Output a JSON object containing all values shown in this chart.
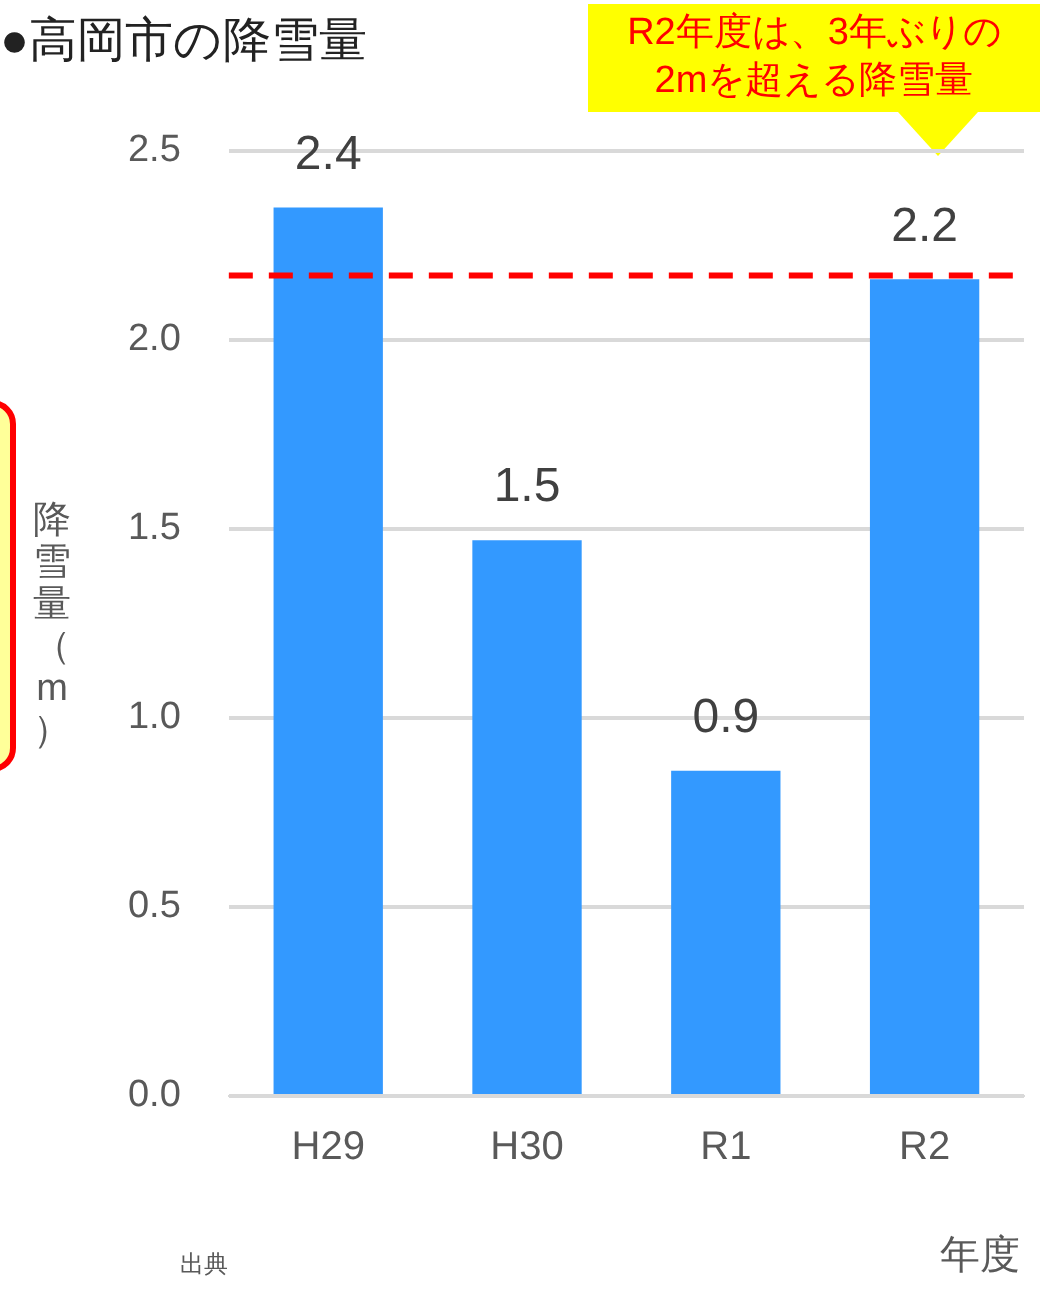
{
  "chart_data": {
    "type": "bar",
    "title": "●高岡市の降雪量",
    "xlabel": "年度",
    "ylabel": "降雪量（m）",
    "categories": [
      "H29",
      "H30",
      "R1",
      "R2"
    ],
    "values": [
      2.35,
      1.47,
      0.86,
      2.16
    ],
    "value_labels": [
      "2.4",
      "1.5",
      "0.9",
      "2.2"
    ],
    "color": "#3399ff",
    "ylim": [
      0,
      2.5
    ],
    "yticks": [
      {
        "value": 0,
        "label": "0.0"
      },
      0.5,
      {
        "value": 1,
        "label": "1.0"
      },
      1.5,
      {
        "value": 2,
        "label": "2.0"
      },
      2.5
    ],
    "grid": "y",
    "ref_lines": [
      {
        "axis": "y",
        "value": 2.17,
        "color": "#ff0000",
        "line_style": "dashed"
      }
    ],
    "annotations": [
      "R2年度は、3年ぶりの2mを超える降雪量",
      "出典"
    ]
  }
}
